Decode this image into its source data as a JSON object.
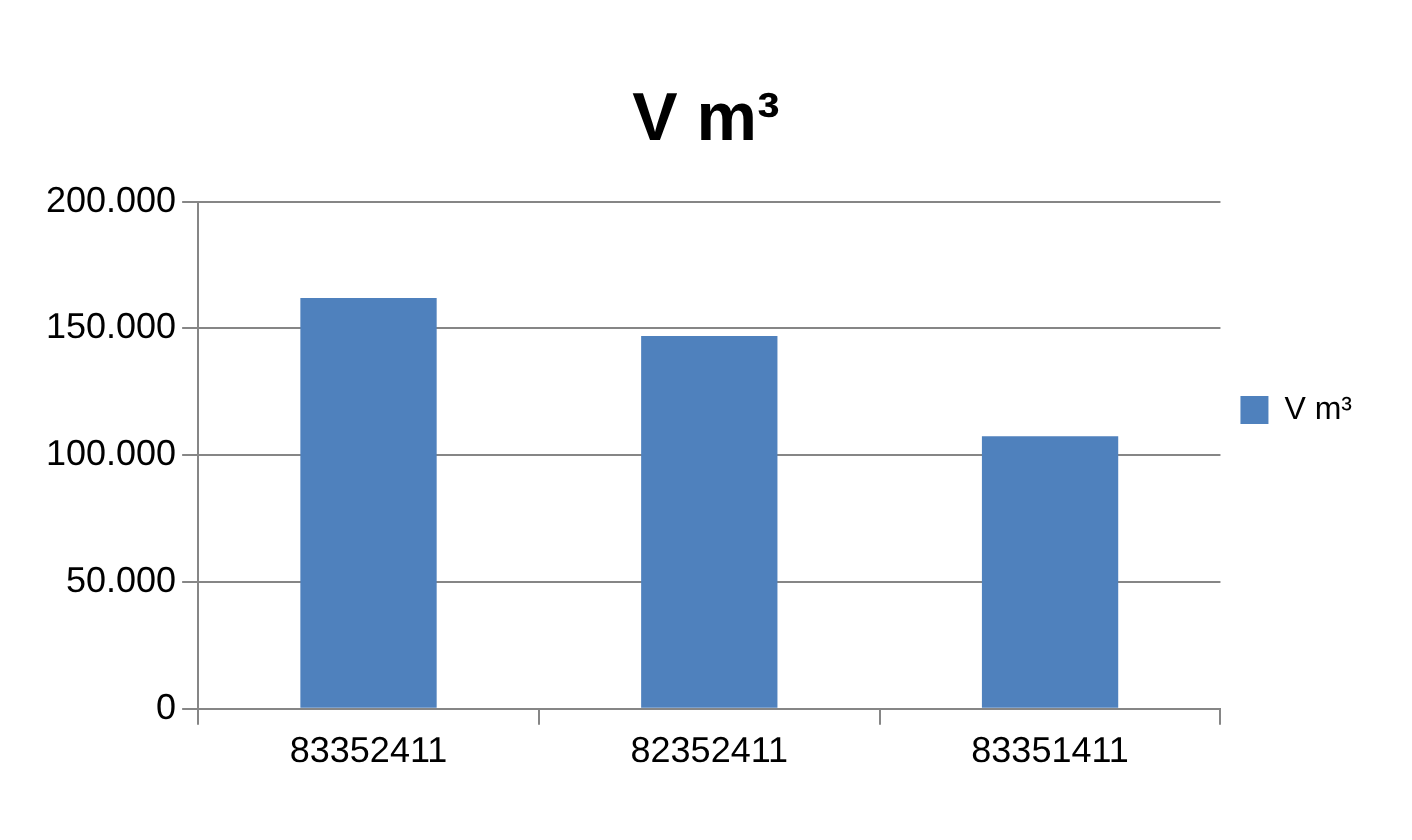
{
  "chart_data": {
    "type": "bar",
    "title": "V m³",
    "categories": [
      "83352411",
      "82352411",
      "83351411"
    ],
    "series": [
      {
        "name": "V m³",
        "color": "#4f81bd",
        "values": [
          162000,
          147000,
          107500
        ]
      }
    ],
    "ylim": [
      0,
      200000
    ],
    "yticks": [
      {
        "value": 0,
        "label": "0"
      },
      {
        "value": 50000,
        "label": "50.000"
      },
      {
        "value": 100000,
        "label": "100.000"
      },
      {
        "value": 150000,
        "label": "150.000"
      },
      {
        "value": 200000,
        "label": "200.000"
      }
    ],
    "grid": "y",
    "legend": "right"
  }
}
